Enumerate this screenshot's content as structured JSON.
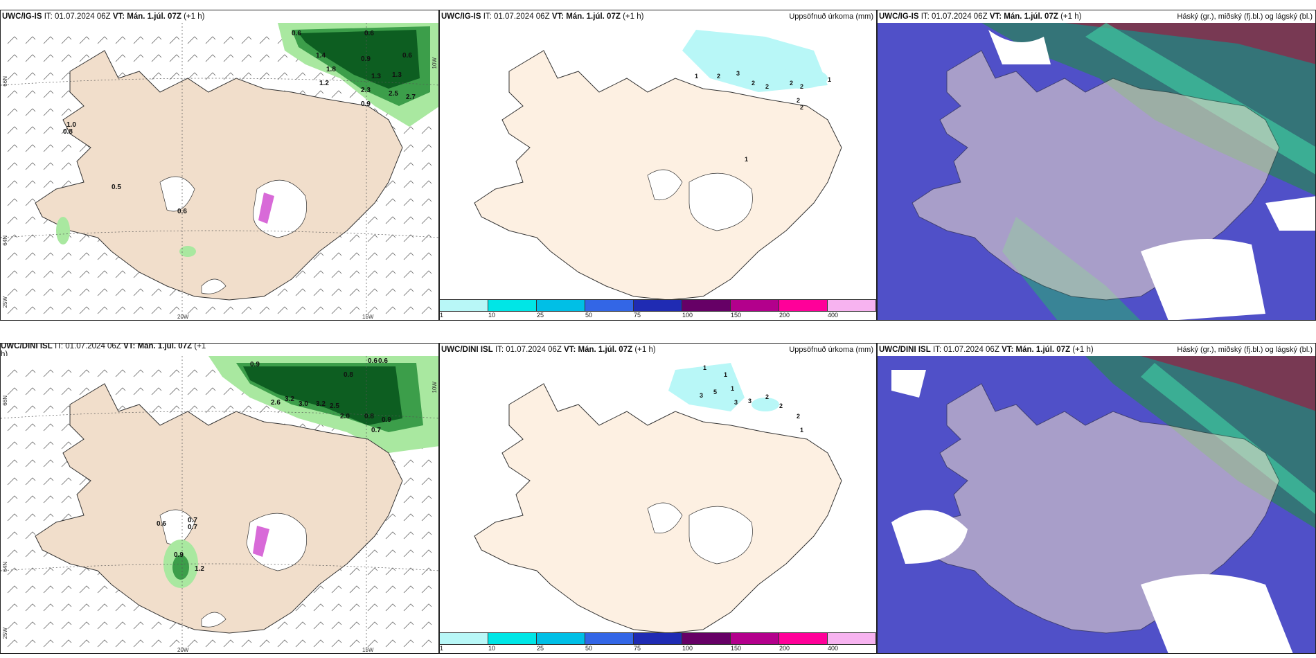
{
  "panels": {
    "p1": {
      "model": "UWC/IG-IS",
      "it": "IT: 01.07.2024 06Z",
      "vt": "VT: Mán. 1.júl. 07Z",
      "lead": "(+1 h)",
      "right": ""
    },
    "p2": {
      "model": "UWC/IG-IS",
      "it": "IT: 01.07.2024 06Z",
      "vt": "VT: Mán. 1.júl. 07Z",
      "lead": "(+1 h)",
      "right": "Uppsöfnuð úrkoma (mm)"
    },
    "p3": {
      "model": "UWC/IG-IS",
      "it": "IT: 01.07.2024 06Z",
      "vt": "VT: Mán. 1.júl. 07Z",
      "lead": "(+1 h)",
      "right": "Háský (gr.), miðský (fj.bl.) og lágský (bl.)"
    },
    "p4": {
      "model": "UWC/DINI ISL",
      "it": "IT: 01.07.2024 06Z",
      "vt": "VT: Mán. 1.júl. 07Z",
      "lead": "(+1",
      "lead2": "h)",
      "right": ""
    },
    "p5": {
      "model": "UWC/DINI ISL",
      "it": "IT: 01.07.2024 06Z",
      "vt": "VT: Mán. 1.júl. 07Z",
      "lead": "(+1 h)",
      "right": "Uppsöfnuð úrkoma (mm)"
    },
    "p6": {
      "model": "UWC/DINI ISL",
      "it": "IT: 01.07.2024 06Z",
      "vt": "VT: Mán. 1.júl. 07Z",
      "lead": "(+1 h)",
      "right": "Háský (gr.), miðský (fj.bl.) og lágský (bl.)"
    }
  },
  "colorbar": {
    "labels": [
      "1",
      "10",
      "25",
      "50",
      "75",
      "100",
      "150",
      "200",
      "400"
    ],
    "colors": [
      "#b8f7f7",
      "#00e6e6",
      "#00bfe6",
      "#3366e6",
      "#1f2bb3",
      "#660066",
      "#b3008c",
      "#ff0099",
      "#f7b3f0"
    ]
  },
  "coords": {
    "lon20": "20W",
    "lon15": "15W",
    "lat66": "66N",
    "lat64": "64N",
    "lon25": "25W",
    "lon10": "10W"
  },
  "colors": {
    "land": "#f1decb",
    "land_light": "#fdf0e2",
    "green_dark": "#0d5e21",
    "green_mid": "#3c9e4a",
    "green_light": "#a9e8a0",
    "cyan_light": "#b8f7f7",
    "blue_cloud": "#5050c8",
    "magenta": "#d86ad8"
  },
  "labels": {
    "p1_precip": [
      "0.6",
      "0.6",
      "1.4",
      "1.8",
      "0.9",
      "0.6",
      "1.2",
      "1.3",
      "1.3",
      "2.3",
      "2.5",
      "2.7",
      "0.9",
      "1.0",
      "0.8",
      "0.5",
      "0.6"
    ],
    "p2_precip": [
      "1",
      "2",
      "3",
      "2",
      "2",
      "2",
      "2",
      "2",
      "2",
      "1",
      "1"
    ],
    "p4_precip": [
      "0.9",
      "0.6",
      "0.6",
      "0.8",
      "2.6",
      "3.2",
      "3.0",
      "3.2",
      "2.5",
      "2.0",
      "0.8",
      "0.9",
      "0.7",
      "0.6",
      "0.7",
      "0.7",
      "0.9",
      "1.2"
    ],
    "p5_precip": [
      "1",
      "1",
      "1",
      "3",
      "5",
      "3",
      "3",
      "2",
      "2",
      "2",
      "1"
    ]
  }
}
